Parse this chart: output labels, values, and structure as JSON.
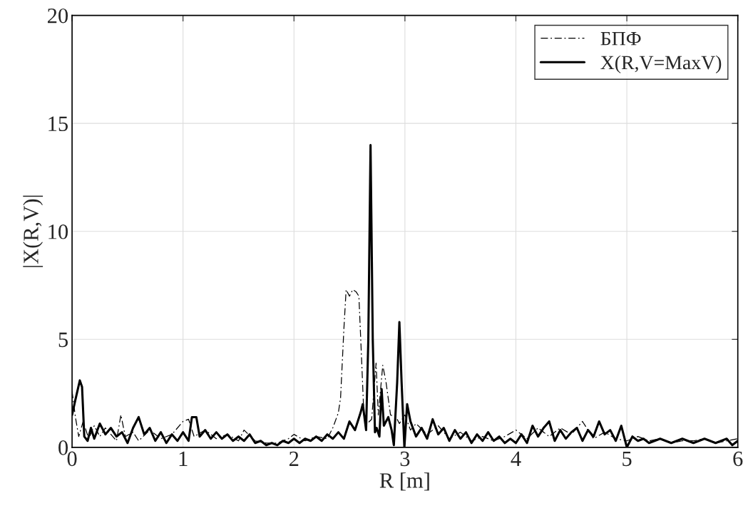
{
  "chart_data": {
    "type": "line",
    "xlabel": "R [m]",
    "ylabel": "|X(R,V)|",
    "xlim": [
      0,
      6
    ],
    "xticks": [
      0,
      1,
      2,
      3,
      4,
      5,
      6
    ],
    "ylim": [
      0,
      20
    ],
    "yticks": [
      0,
      5,
      10,
      15,
      20
    ],
    "grid": true,
    "legend": "top right",
    "marker": "none",
    "series": [
      {
        "name": "БПФ",
        "color": "#000000",
        "line_style": "dashed",
        "x": [
          0,
          0.03,
          0.06,
          0.1,
          0.15,
          0.2,
          0.25,
          0.3,
          0.35,
          0.4,
          0.44,
          0.48,
          0.55,
          0.6,
          0.7,
          0.8,
          0.9,
          1.0,
          1.05,
          1.1,
          1.2,
          1.3,
          1.4,
          1.5,
          1.55,
          1.65,
          1.75,
          1.85,
          1.95,
          2.0,
          2.1,
          2.2,
          2.3,
          2.35,
          2.4,
          2.42,
          2.45,
          2.47,
          2.5,
          2.53,
          2.56,
          2.585,
          2.61,
          2.63,
          2.66,
          2.7,
          2.74,
          2.76,
          2.8,
          2.83,
          2.87,
          2.92,
          2.95,
          3.0,
          3.05,
          3.1,
          3.2,
          3.3,
          3.4,
          3.5,
          3.6,
          3.7,
          3.8,
          3.9,
          4.0,
          4.1,
          4.2,
          4.3,
          4.4,
          4.5,
          4.6,
          4.7,
          4.8,
          4.9,
          5.0,
          5.1,
          5.2,
          5.3,
          5.4,
          5.5,
          5.6,
          5.7,
          5.8,
          5.9,
          6.0
        ],
        "values": [
          2.6,
          1.4,
          0.5,
          1.2,
          0.4,
          1.0,
          0.5,
          0.9,
          0.6,
          0.3,
          1.5,
          0.5,
          0.7,
          0.3,
          0.8,
          0.4,
          0.6,
          1.2,
          1.3,
          0.5,
          0.8,
          0.4,
          0.6,
          0.3,
          0.8,
          0.3,
          0.2,
          0.2,
          0.4,
          0.6,
          0.3,
          0.5,
          0.4,
          0.9,
          1.6,
          2.3,
          5.5,
          7.3,
          7.0,
          7.3,
          7.2,
          7.0,
          4.0,
          1.5,
          1.1,
          1.3,
          3.9,
          1.5,
          3.8,
          3.0,
          1.5,
          1.4,
          1.1,
          1.5,
          0.8,
          1.1,
          0.6,
          1.0,
          0.4,
          0.7,
          0.3,
          0.5,
          0.3,
          0.5,
          0.8,
          0.4,
          0.9,
          0.5,
          0.9,
          0.6,
          1.2,
          0.4,
          0.7,
          0.4,
          0.3,
          0.5,
          0.3,
          0.4,
          0.2,
          0.3,
          0.3,
          0.4,
          0.2,
          0.3,
          0.4
        ]
      },
      {
        "name": "X(R,V=MaxV)",
        "color": "#000000",
        "line_style": "solid",
        "x": [
          0,
          0.03,
          0.07,
          0.09,
          0.11,
          0.14,
          0.17,
          0.2,
          0.25,
          0.3,
          0.35,
          0.4,
          0.45,
          0.5,
          0.55,
          0.6,
          0.65,
          0.7,
          0.75,
          0.8,
          0.85,
          0.9,
          0.95,
          1.0,
          1.05,
          1.08,
          1.12,
          1.15,
          1.2,
          1.25,
          1.3,
          1.35,
          1.4,
          1.45,
          1.5,
          1.55,
          1.6,
          1.65,
          1.7,
          1.75,
          1.8,
          1.85,
          1.9,
          1.95,
          2.0,
          2.05,
          2.1,
          2.15,
          2.2,
          2.25,
          2.3,
          2.35,
          2.4,
          2.45,
          2.5,
          2.55,
          2.6,
          2.62,
          2.65,
          2.67,
          2.69,
          2.71,
          2.73,
          2.745,
          2.77,
          2.79,
          2.81,
          2.85,
          2.88,
          2.9,
          2.93,
          2.95,
          2.97,
          2.995,
          3.02,
          3.05,
          3.1,
          3.15,
          3.2,
          3.25,
          3.3,
          3.35,
          3.4,
          3.45,
          3.5,
          3.55,
          3.6,
          3.65,
          3.7,
          3.75,
          3.8,
          3.85,
          3.9,
          3.95,
          4.0,
          4.05,
          4.1,
          4.15,
          4.2,
          4.25,
          4.3,
          4.35,
          4.4,
          4.45,
          4.5,
          4.55,
          4.6,
          4.65,
          4.7,
          4.75,
          4.8,
          4.85,
          4.9,
          4.95,
          5.0,
          5.05,
          5.1,
          5.15,
          5.2,
          5.3,
          5.4,
          5.5,
          5.6,
          5.7,
          5.8,
          5.9,
          5.95,
          6.0
        ],
        "values": [
          1.5,
          2.2,
          3.1,
          2.8,
          0.5,
          0.3,
          0.9,
          0.4,
          1.1,
          0.6,
          0.9,
          0.5,
          0.7,
          0.2,
          0.9,
          1.4,
          0.6,
          0.9,
          0.3,
          0.7,
          0.2,
          0.6,
          0.3,
          0.7,
          0.3,
          1.4,
          1.4,
          0.5,
          0.8,
          0.4,
          0.7,
          0.4,
          0.6,
          0.3,
          0.5,
          0.3,
          0.6,
          0.2,
          0.3,
          0.1,
          0.2,
          0.1,
          0.3,
          0.2,
          0.4,
          0.2,
          0.4,
          0.3,
          0.5,
          0.3,
          0.6,
          0.4,
          0.7,
          0.4,
          1.2,
          0.8,
          1.6,
          2.0,
          0.8,
          5.0,
          14.0,
          5.0,
          0.7,
          0.9,
          0.5,
          2.7,
          1.0,
          1.4,
          0.8,
          0.1,
          3.0,
          5.8,
          3.0,
          0.0,
          2.0,
          1.2,
          0.5,
          0.9,
          0.4,
          1.3,
          0.6,
          0.9,
          0.3,
          0.8,
          0.4,
          0.7,
          0.2,
          0.6,
          0.3,
          0.7,
          0.3,
          0.5,
          0.2,
          0.4,
          0.2,
          0.6,
          0.2,
          1.0,
          0.5,
          0.9,
          1.2,
          0.3,
          0.8,
          0.4,
          0.7,
          0.9,
          0.3,
          0.8,
          0.5,
          1.2,
          0.6,
          0.8,
          0.3,
          1.0,
          0.0,
          0.5,
          0.3,
          0.4,
          0.2,
          0.4,
          0.2,
          0.4,
          0.2,
          0.4,
          0.2,
          0.4,
          0.1,
          0.3
        ]
      }
    ]
  }
}
